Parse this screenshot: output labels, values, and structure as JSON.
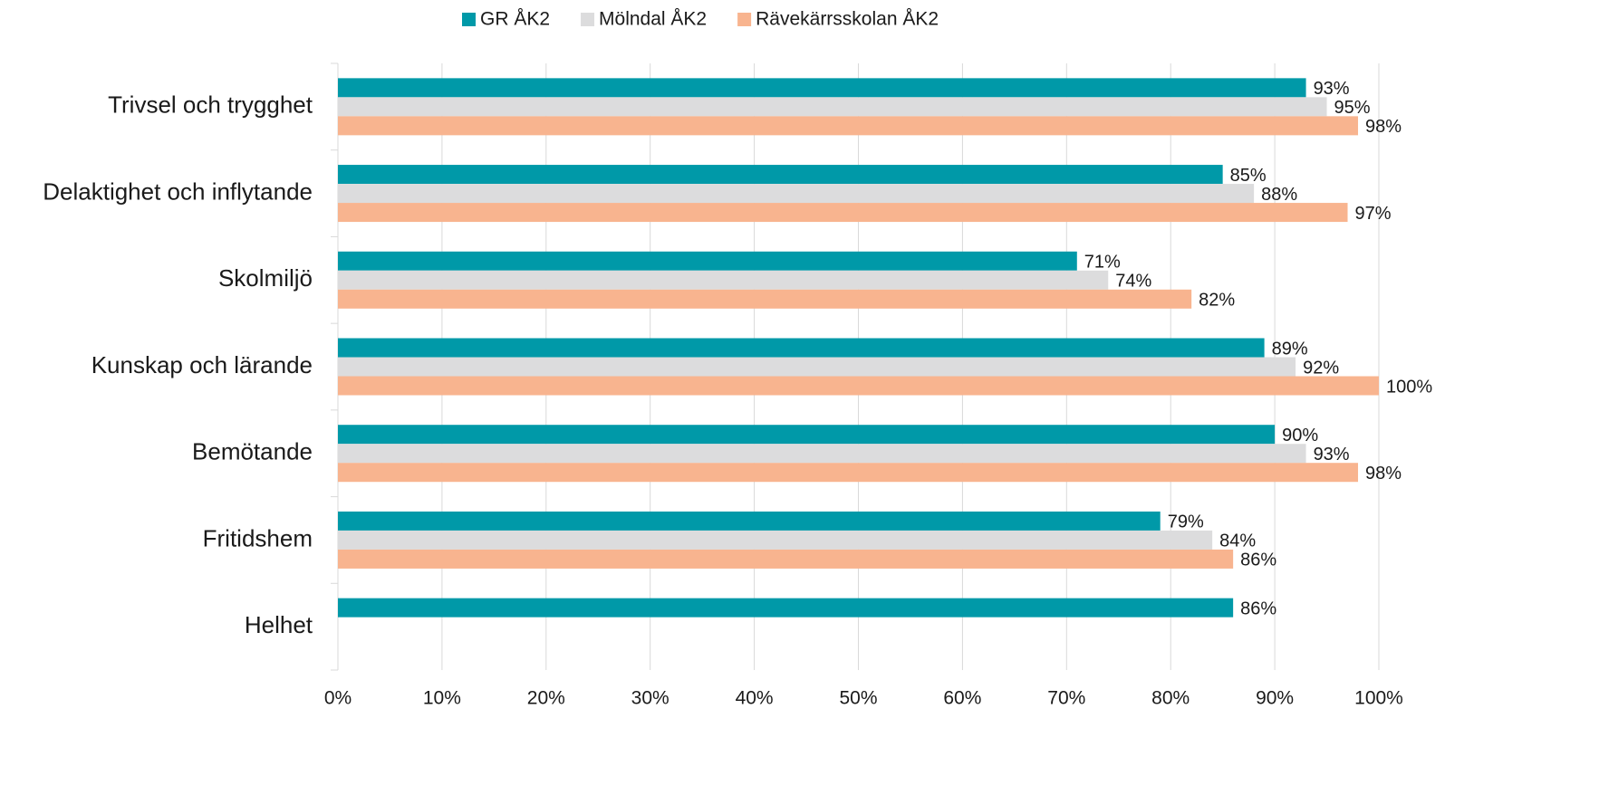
{
  "chart_data": {
    "type": "bar",
    "orientation": "horizontal",
    "categories": [
      "Trivsel och trygghet",
      "Delaktighet och inflytande",
      "Skolmiljö",
      "Kunskap och lärande",
      "Bemötande",
      "Fritidshem",
      "Helhet"
    ],
    "series": [
      {
        "name": "GR ÅK2",
        "color": "#0099a8",
        "values": [
          93,
          85,
          71,
          89,
          90,
          79,
          86
        ],
        "value_labels": [
          "93%",
          "85%",
          "71%",
          "89%",
          "90%",
          "79%",
          "86%"
        ]
      },
      {
        "name": "Mölndal ÅK2",
        "color": "#dcdcdd",
        "values": [
          95,
          88,
          74,
          92,
          93,
          84,
          null
        ],
        "value_labels": [
          "95%",
          "88%",
          "74%",
          "92%",
          "93%",
          "84%",
          null
        ]
      },
      {
        "name": "Rävekärrsskolan ÅK2",
        "color": "#f8b48f",
        "values": [
          98,
          97,
          82,
          100,
          98,
          86,
          null
        ],
        "value_labels": [
          "98%",
          "97%",
          "82%",
          "100%",
          "98%",
          "86%",
          null
        ]
      }
    ],
    "xlim": [
      0,
      100
    ],
    "xticks": [
      {
        "value": 0,
        "label": "0%"
      },
      {
        "value": 10,
        "label": "10%"
      },
      {
        "value": 20,
        "label": "20%"
      },
      {
        "value": 30,
        "label": "30%"
      },
      {
        "value": 40,
        "label": "40%"
      },
      {
        "value": 50,
        "label": "50%"
      },
      {
        "value": 60,
        "label": "60%"
      },
      {
        "value": 70,
        "label": "70%"
      },
      {
        "value": 80,
        "label": "80%"
      },
      {
        "value": 90,
        "label": "90%"
      },
      {
        "value": 100,
        "label": "100%"
      }
    ],
    "grid": true,
    "legend": "top"
  }
}
